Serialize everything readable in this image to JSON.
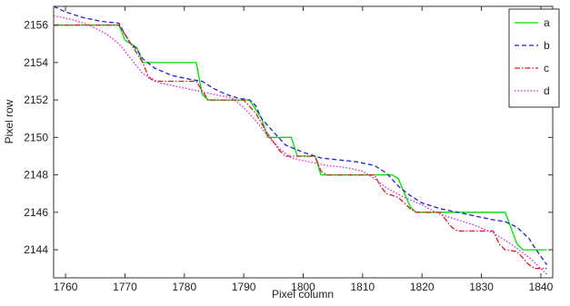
{
  "chart_data": {
    "type": "line",
    "title": "",
    "xlabel": "Pixel column",
    "ylabel": "Pixel row",
    "xlim": [
      1758,
      1842
    ],
    "ylim": [
      2142.5,
      2157
    ],
    "xticks": [
      1760,
      1770,
      1780,
      1790,
      1800,
      1810,
      1820,
      1830,
      1840
    ],
    "yticks": [
      2144,
      2146,
      2148,
      2150,
      2152,
      2154,
      2156
    ],
    "grid": false,
    "legend_position": "top-right",
    "series": [
      {
        "name": "a",
        "color": "#00dd00",
        "dash": "solid",
        "points": [
          [
            1758,
            2156
          ],
          [
            1769,
            2156
          ],
          [
            1770,
            2155.2
          ],
          [
            1772,
            2154.8
          ],
          [
            1773,
            2154
          ],
          [
            1782,
            2154
          ],
          [
            1783,
            2152.3
          ],
          [
            1784,
            2152
          ],
          [
            1791,
            2152
          ],
          [
            1793,
            2151
          ],
          [
            1794,
            2150
          ],
          [
            1798,
            2150
          ],
          [
            1799,
            2149
          ],
          [
            1802,
            2149
          ],
          [
            1803,
            2148
          ],
          [
            1815,
            2148
          ],
          [
            1816,
            2147.8
          ],
          [
            1818,
            2146.3
          ],
          [
            1819,
            2146
          ],
          [
            1834,
            2146
          ],
          [
            1836,
            2144.3
          ],
          [
            1837,
            2144
          ],
          [
            1841,
            2144
          ]
        ]
      },
      {
        "name": "b",
        "color": "#2222cc",
        "dash": "dashed",
        "points": [
          [
            1758,
            2157
          ],
          [
            1760,
            2156.7
          ],
          [
            1763,
            2156.4
          ],
          [
            1766,
            2156.2
          ],
          [
            1769,
            2156.1
          ],
          [
            1770,
            2155.5
          ],
          [
            1771,
            2155
          ],
          [
            1772,
            2154.7
          ],
          [
            1773,
            2154.2
          ],
          [
            1775,
            2153.7
          ],
          [
            1778,
            2153.3
          ],
          [
            1781,
            2153.1
          ],
          [
            1783,
            2153
          ],
          [
            1785,
            2152.6
          ],
          [
            1787,
            2152.3
          ],
          [
            1789,
            2152.1
          ],
          [
            1791,
            2152
          ],
          [
            1792,
            2151.7
          ],
          [
            1793,
            2151
          ],
          [
            1795,
            2150.3
          ],
          [
            1797,
            2149.6
          ],
          [
            1800,
            2149.2
          ],
          [
            1803,
            2148.9
          ],
          [
            1806,
            2148.8
          ],
          [
            1809,
            2148.7
          ],
          [
            1812,
            2148.5
          ],
          [
            1814,
            2148.1
          ],
          [
            1816,
            2147.4
          ],
          [
            1818,
            2146.9
          ],
          [
            1820,
            2146.5
          ],
          [
            1823,
            2146.2
          ],
          [
            1826,
            2146
          ],
          [
            1829,
            2145.8
          ],
          [
            1832,
            2145.6
          ],
          [
            1834,
            2145.5
          ],
          [
            1836,
            2145.2
          ],
          [
            1838,
            2144.6
          ],
          [
            1839,
            2144.1
          ],
          [
            1841,
            2143.2
          ]
        ]
      },
      {
        "name": "c",
        "color": "#cc2222",
        "dash": "dashdot",
        "points": [
          [
            1758,
            2156
          ],
          [
            1769,
            2156
          ],
          [
            1770,
            2155.5
          ],
          [
            1772,
            2154.5
          ],
          [
            1773,
            2154
          ],
          [
            1774,
            2153.2
          ],
          [
            1775,
            2153
          ],
          [
            1782,
            2153
          ],
          [
            1783,
            2152.5
          ],
          [
            1784,
            2152
          ],
          [
            1790,
            2152
          ],
          [
            1792,
            2151.3
          ],
          [
            1794,
            2150.2
          ],
          [
            1796,
            2149.3
          ],
          [
            1797,
            2149
          ],
          [
            1802,
            2149
          ],
          [
            1803,
            2148.2
          ],
          [
            1804,
            2148
          ],
          [
            1812,
            2148
          ],
          [
            1813,
            2147.4
          ],
          [
            1814,
            2147
          ],
          [
            1816,
            2146.8
          ],
          [
            1818,
            2146.2
          ],
          [
            1819,
            2146
          ],
          [
            1823,
            2146
          ],
          [
            1825,
            2145.2
          ],
          [
            1826,
            2145
          ],
          [
            1832,
            2145
          ],
          [
            1833,
            2144.3
          ],
          [
            1834,
            2144
          ],
          [
            1836,
            2143.9
          ],
          [
            1838,
            2143.2
          ],
          [
            1839,
            2143
          ],
          [
            1841,
            2143
          ]
        ]
      },
      {
        "name": "d",
        "color": "#dd22dd",
        "dash": "dotted",
        "points": [
          [
            1758,
            2156.5
          ],
          [
            1761,
            2156.3
          ],
          [
            1764,
            2156
          ],
          [
            1767,
            2155.5
          ],
          [
            1769,
            2155
          ],
          [
            1771,
            2154.2
          ],
          [
            1773,
            2153.4
          ],
          [
            1776,
            2152.9
          ],
          [
            1779,
            2152.7
          ],
          [
            1782,
            2152.5
          ],
          [
            1785,
            2152.3
          ],
          [
            1788,
            2152.1
          ],
          [
            1790,
            2151.6
          ],
          [
            1792,
            2150.9
          ],
          [
            1794,
            2150.1
          ],
          [
            1796,
            2149.4
          ],
          [
            1798,
            2148.9
          ],
          [
            1801,
            2148.7
          ],
          [
            1804,
            2148.5
          ],
          [
            1807,
            2148.4
          ],
          [
            1810,
            2148.2
          ],
          [
            1812,
            2147.8
          ],
          [
            1814,
            2147.3
          ],
          [
            1817,
            2146.8
          ],
          [
            1820,
            2146.4
          ],
          [
            1823,
            2145.9
          ],
          [
            1826,
            2145.6
          ],
          [
            1829,
            2145.3
          ],
          [
            1832,
            2144.9
          ],
          [
            1835,
            2144.3
          ],
          [
            1838,
            2143.6
          ],
          [
            1840,
            2143
          ],
          [
            1841,
            2142.7
          ]
        ]
      }
    ]
  }
}
